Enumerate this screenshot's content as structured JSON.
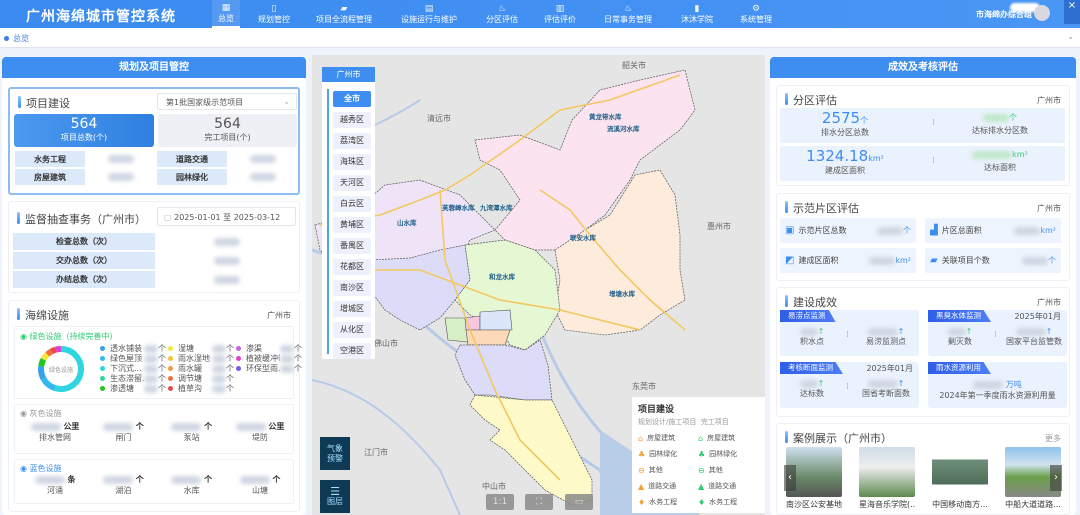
{
  "header": {
    "title": "广州海绵城市管控系统",
    "user": "市海绵办综合组",
    "nav": [
      {
        "label": "总览",
        "icon": "grid-icon"
      },
      {
        "label": "规划管控",
        "icon": "document-icon"
      },
      {
        "label": "项目全流程管理",
        "icon": "folder-icon"
      },
      {
        "label": "设施运行与维护",
        "icon": "table-icon"
      },
      {
        "label": "分区评估",
        "icon": "drop-icon"
      },
      {
        "label": "评估评价",
        "icon": "clipboard-icon"
      },
      {
        "label": "日常事务管理",
        "icon": "drop-icon"
      },
      {
        "label": "沐沐学院",
        "icon": "book-icon"
      },
      {
        "label": "系统管理",
        "icon": "gear-icon"
      }
    ]
  },
  "tabs": {
    "active": "总览"
  },
  "left": {
    "title": "规划及项目管控",
    "project": {
      "title": "项目建设",
      "select": "第1批国家级示范项目",
      "total": "564",
      "total_label": "项目总数(个)",
      "done": "564",
      "done_label": "完工项目(个)",
      "categories": [
        "水务工程",
        "道路交通",
        "房屋建筑",
        "园林绿化"
      ]
    },
    "supervision": {
      "title": "监督抽查事务（广州市）",
      "date_from": "2025-01-01",
      "date_sep": "至",
      "date_to": "2025-03-12",
      "rows": [
        "检查总数（次）",
        "交办总数（次）",
        "办结总数（次）"
      ]
    },
    "sponge": {
      "title": "海绵设施",
      "city": "广州市",
      "green": {
        "title": "绿色设施（持续完善中）",
        "donut_label": "绿色设施",
        "unit": "个",
        "items": [
          {
            "name": "透水铺装",
            "color": "#3aa0f0"
          },
          {
            "name": "绿色屋顶",
            "color": "#33b8f0"
          },
          {
            "name": "下沉式...",
            "color": "#2fd6e0"
          },
          {
            "name": "生态滞留...",
            "color": "#2fd69a"
          },
          {
            "name": "渗透塘",
            "color": "#22c522"
          },
          {
            "name": "湿塘",
            "color": "#f5e63a"
          },
          {
            "name": "雨水湿地",
            "color": "#f5c23a"
          },
          {
            "name": "雨水罐",
            "color": "#f59a3a"
          },
          {
            "name": "调节塘",
            "color": "#f0703a"
          },
          {
            "name": "植草沟",
            "color": "#e84a4a"
          },
          {
            "name": "渗渠",
            "color": "#c066e0"
          },
          {
            "name": "植被缓冲带",
            "color": "#e040d0"
          },
          {
            "name": "环保型雨...",
            "color": "#7a5ae0"
          }
        ]
      },
      "gray": {
        "title": "灰色设施",
        "items": [
          {
            "name": "排水管网",
            "unit": "公里"
          },
          {
            "name": "闸门",
            "unit": "个"
          },
          {
            "name": "泵站",
            "unit": "个"
          },
          {
            "name": "堤防",
            "unit": "公里"
          }
        ]
      },
      "blue": {
        "title": "蓝色设施",
        "items": [
          {
            "name": "河涌",
            "unit": "条"
          },
          {
            "name": "湖泊",
            "unit": "个"
          },
          {
            "name": "水库",
            "unit": "个"
          },
          {
            "name": "山塘",
            "unit": "个"
          }
        ]
      }
    }
  },
  "map": {
    "region_title": "广州市",
    "districts": [
      "全市",
      "越秀区",
      "荔湾区",
      "海珠区",
      "天河区",
      "白云区",
      "黄埔区",
      "番禺区",
      "花都区",
      "南沙区",
      "增城区",
      "从化区",
      "空港区"
    ],
    "active_district": "全市",
    "cities": [
      "韶关市",
      "清远市",
      "惠州市",
      "佛山市",
      "东莞市",
      "江门市",
      "中山市"
    ],
    "reservoirs": [
      "黄龙带水库",
      "流溪河水库",
      "芙蓉嶂水库",
      "九湾潭水库",
      "联安水库",
      "和龙水库",
      "增塘水库",
      "山水库"
    ],
    "weather_button": "气象预警",
    "layer_button": "图层",
    "controls": [
      "1:1",
      "fullscreen-icon",
      "legend-icon"
    ],
    "legend": {
      "title": "项目建设",
      "col1": "规划设计/施工项目",
      "col2": "完工项目",
      "types": [
        {
          "name": "房屋建筑",
          "icon": "house-icon"
        },
        {
          "name": "园林绿化",
          "icon": "tree-icon"
        },
        {
          "name": "其他",
          "icon": "minus-circle-icon"
        },
        {
          "name": "道路交通",
          "icon": "road-icon"
        },
        {
          "name": "水务工程",
          "icon": "drop-icon"
        }
      ],
      "color_plan": "#f5a030",
      "color_done": "#2ecc71"
    }
  },
  "right": {
    "title": "成效及考核评估",
    "zone": {
      "title": "分区评估",
      "city": "广州市",
      "total": "2575",
      "total_unit": "个",
      "total_label": "排水分区总数",
      "ok_unit": "个",
      "ok_label": "达标排水分区数",
      "area": "1324.18",
      "area_unit": "km²",
      "area_label": "建成区面积",
      "ok_area_unit": "km²",
      "ok_area_label": "达标面积"
    },
    "demo": {
      "title": "示范片区评估",
      "city": "广州市",
      "items": [
        {
          "label": "示范片区总数",
          "unit": "个",
          "icon": "inbox-icon"
        },
        {
          "label": "片区总面积",
          "unit": "km²",
          "icon": "area-icon"
        },
        {
          "label": "建成区面积",
          "unit": "km²",
          "icon": "map-icon"
        },
        {
          "label": "关联项目个数",
          "unit": "个",
          "icon": "folder-icon"
        }
      ]
    },
    "effect": {
      "title": "建设成效",
      "city": "广州市",
      "cards": [
        {
          "tag": "易涝点监测",
          "date": "",
          "a": "积水点",
          "b": "易涝监测点"
        },
        {
          "tag": "黑臭水体监测",
          "date": "2025年01月",
          "a": "剿灭数",
          "b": "国家平台监管数"
        },
        {
          "tag": "考核断面监测",
          "date": "2025年01月",
          "a": "达标数",
          "b": "国省考断面数"
        },
        {
          "tag": "雨水资源利用",
          "date": "",
          "unit": "万吨",
          "a": "2024年第一季度雨水资源利用量"
        }
      ]
    },
    "cases": {
      "title": "案例展示（广州市）",
      "more": "更多",
      "items": [
        "南沙区公安基地",
        "星海音乐学院(...",
        "中国移动南方...",
        "中船大道道路..."
      ]
    }
  }
}
